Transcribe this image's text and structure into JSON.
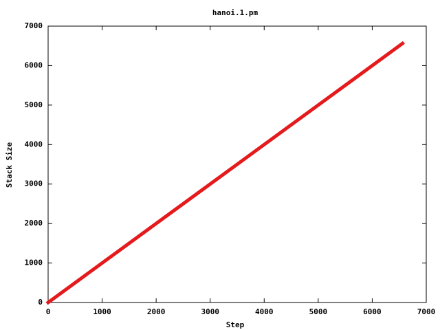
{
  "chart_data": {
    "type": "line",
    "title": "hanoi.1.pm",
    "x_label": "Step",
    "y_label": "Stack Size",
    "x": [
      0,
      6560
    ],
    "values": [
      0,
      6560
    ],
    "color": "#e41a1c",
    "xlim": [
      0,
      7000
    ],
    "xticks": [
      0,
      1000,
      2000,
      3000,
      4000,
      5000,
      6000,
      7000
    ],
    "ylim": [
      0,
      7000
    ],
    "yticks": [
      0,
      1000,
      2000,
      3000,
      4000,
      5000,
      6000,
      7000
    ]
  }
}
